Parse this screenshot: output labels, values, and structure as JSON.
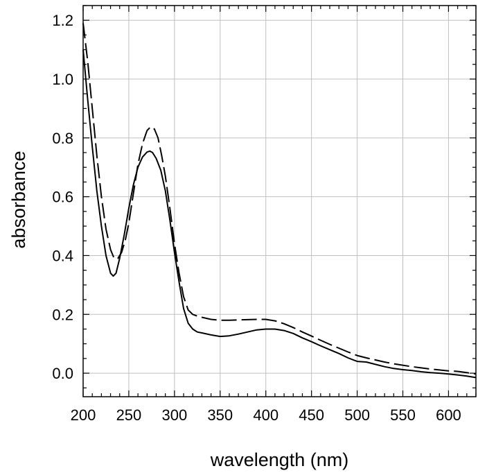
{
  "chart_data": {
    "type": "line",
    "title": "",
    "xlabel": "wavelength (nm)",
    "ylabel": "absorbance",
    "xlim": [
      200,
      630
    ],
    "ylim": [
      -0.08,
      1.25
    ],
    "xticks": [
      200,
      250,
      300,
      350,
      400,
      450,
      500,
      550,
      600
    ],
    "yticks": [
      0.0,
      0.2,
      0.4,
      0.6,
      0.8,
      1.0,
      1.2
    ],
    "xtick_labels": [
      "200",
      "250",
      "300",
      "350",
      "400",
      "450",
      "500",
      "550",
      "600"
    ],
    "ytick_labels": [
      "0.0",
      "0.2",
      "0.4",
      "0.6",
      "0.8",
      "1.0",
      "1.2"
    ],
    "grid": true,
    "legend": "none",
    "series": [
      {
        "style": "solid",
        "color": "#000000",
        "x": [
          200,
          205,
          210,
          215,
          220,
          225,
          230,
          233,
          236,
          240,
          245,
          250,
          255,
          260,
          265,
          270,
          273,
          276,
          280,
          285,
          290,
          295,
          300,
          305,
          310,
          315,
          320,
          325,
          330,
          340,
          350,
          360,
          370,
          380,
          390,
          400,
          410,
          420,
          430,
          440,
          450,
          460,
          470,
          480,
          490,
          500,
          510,
          520,
          530,
          540,
          550,
          560,
          570,
          580,
          590,
          600,
          610,
          620,
          630
        ],
        "y": [
          1.1,
          0.93,
          0.77,
          0.62,
          0.5,
          0.4,
          0.34,
          0.33,
          0.34,
          0.39,
          0.47,
          0.56,
          0.64,
          0.7,
          0.735,
          0.752,
          0.755,
          0.75,
          0.73,
          0.69,
          0.62,
          0.52,
          0.41,
          0.31,
          0.22,
          0.17,
          0.15,
          0.14,
          0.137,
          0.13,
          0.125,
          0.127,
          0.133,
          0.14,
          0.147,
          0.15,
          0.15,
          0.145,
          0.135,
          0.12,
          0.107,
          0.093,
          0.08,
          0.067,
          0.052,
          0.04,
          0.038,
          0.03,
          0.022,
          0.016,
          0.012,
          0.009,
          0.005,
          0.002,
          0.0,
          -0.003,
          -0.006,
          -0.01,
          -0.015
        ]
      },
      {
        "style": "dashed",
        "color": "#000000",
        "x": [
          200,
          205,
          210,
          215,
          220,
          225,
          230,
          234,
          238,
          242,
          246,
          250,
          255,
          260,
          265,
          270,
          274,
          278,
          282,
          286,
          290,
          295,
          300,
          305,
          310,
          315,
          320,
          325,
          330,
          340,
          350,
          360,
          370,
          380,
          390,
          400,
          410,
          420,
          430,
          440,
          450,
          460,
          470,
          480,
          490,
          500,
          510,
          520,
          530,
          540,
          550,
          560,
          570,
          580,
          590,
          600,
          610,
          620,
          630
        ],
        "y": [
          1.19,
          1.06,
          0.9,
          0.74,
          0.6,
          0.49,
          0.42,
          0.39,
          0.39,
          0.41,
          0.45,
          0.51,
          0.61,
          0.71,
          0.78,
          0.825,
          0.838,
          0.83,
          0.8,
          0.74,
          0.67,
          0.56,
          0.44,
          0.34,
          0.26,
          0.215,
          0.2,
          0.194,
          0.19,
          0.183,
          0.18,
          0.18,
          0.181,
          0.182,
          0.183,
          0.183,
          0.178,
          0.168,
          0.155,
          0.14,
          0.126,
          0.112,
          0.098,
          0.085,
          0.072,
          0.06,
          0.052,
          0.045,
          0.038,
          0.032,
          0.027,
          0.022,
          0.018,
          0.014,
          0.011,
          0.008,
          0.006,
          0.002,
          -0.003
        ]
      }
    ]
  }
}
